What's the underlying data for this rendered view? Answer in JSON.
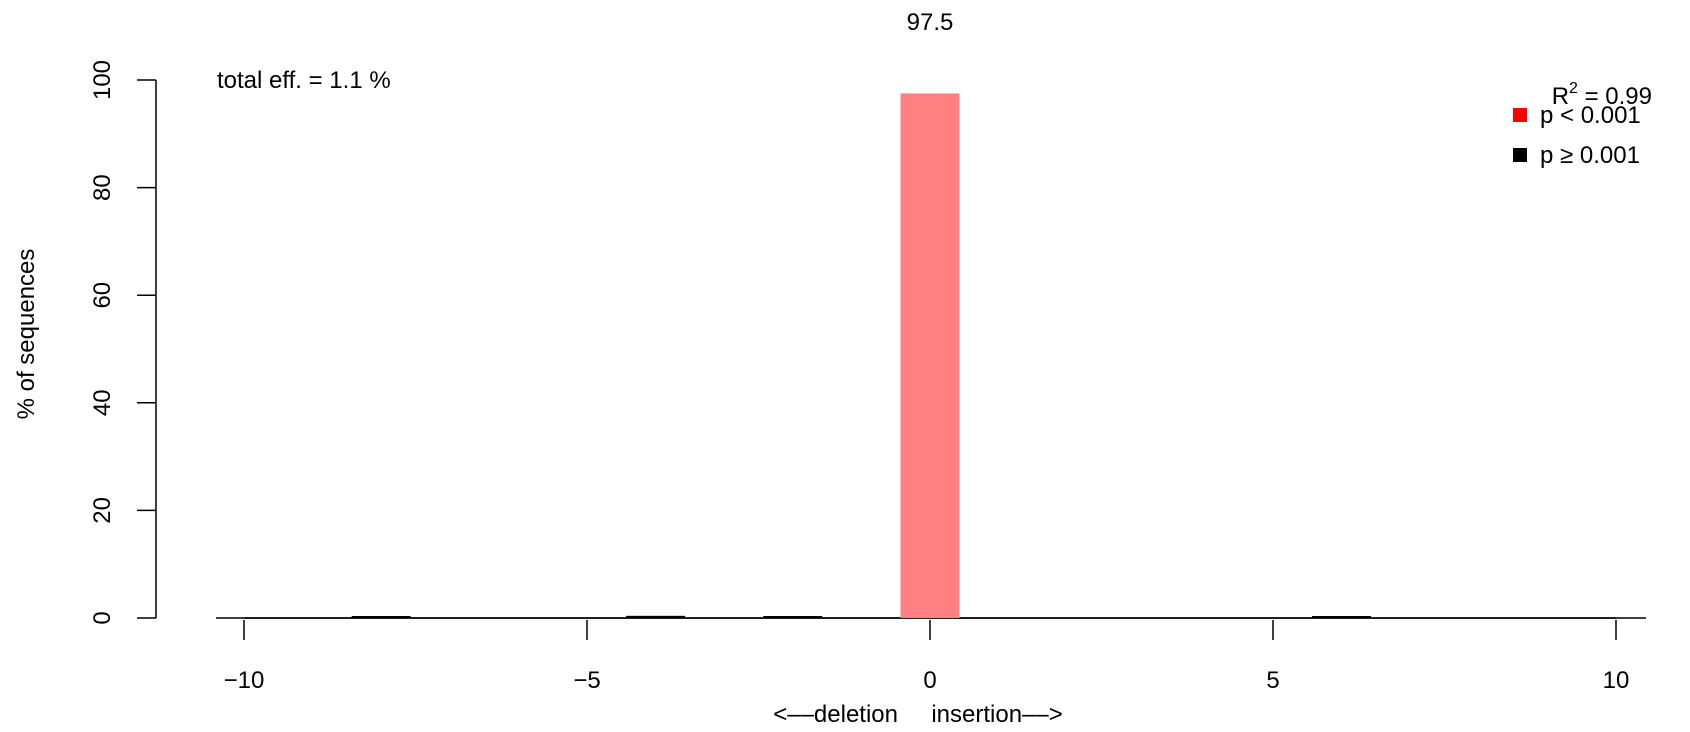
{
  "chart_data": {
    "type": "bar",
    "xlabel": "<––deletion     insertion––>",
    "ylabel": "% of sequences",
    "xlim": [
      -10.5,
      10.5
    ],
    "ylim": [
      0,
      100
    ],
    "xticks": [
      -10,
      -5,
      0,
      5,
      10
    ],
    "xtick_labels": [
      "−10",
      "−5",
      "0",
      "5",
      "10"
    ],
    "yticks": [
      0,
      20,
      40,
      60,
      80,
      100
    ],
    "ytick_labels": [
      "0",
      "20",
      "40",
      "60",
      "80",
      "100"
    ],
    "bars": [
      {
        "x": -8,
        "value": 0.3,
        "significant": false
      },
      {
        "x": -4,
        "value": 0.4,
        "significant": false
      },
      {
        "x": -2,
        "value": 0.2,
        "significant": false
      },
      {
        "x": 0,
        "value": 97.5,
        "significant": true
      },
      {
        "x": 6,
        "value": 0.2,
        "significant": false
      }
    ],
    "bar_label": {
      "x": 0,
      "text": "97.5"
    },
    "annotation": "total eff. = 1.1 %",
    "r2": {
      "base": "R",
      "sup": "2",
      "rest": " = 0.99"
    },
    "legend": [
      {
        "label": "p < 0.001",
        "color": "#ff0000"
      },
      {
        "label": "p ≥ 0.001",
        "color": "#000000"
      }
    ],
    "colors": {
      "significant_bar": "#ff8080",
      "nonsignificant_bar": "#000000"
    },
    "legend_position": "top-right",
    "grid": false
  }
}
